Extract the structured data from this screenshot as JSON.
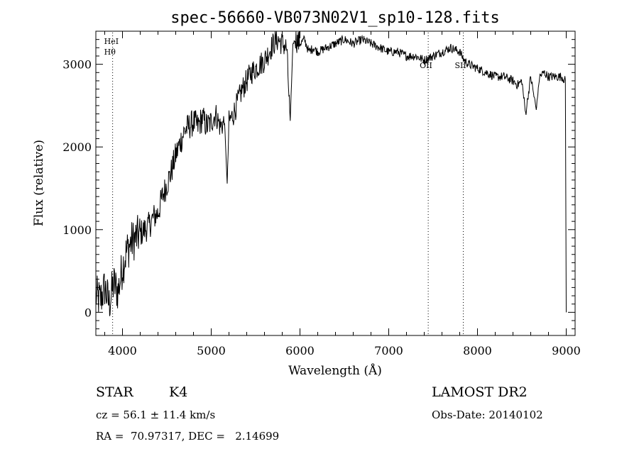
{
  "chart_data": {
    "type": "line",
    "title": "spec-56660-VB073N02V1_sp10-128.fits",
    "xlabel": "Wavelength (Å)",
    "ylabel": "Flux (relative)",
    "xlim": [
      3700,
      9100
    ],
    "ylim": [
      -280,
      3400
    ],
    "xticks": [
      4000,
      5000,
      6000,
      7000,
      8000,
      9000
    ],
    "yticks": [
      0,
      1000,
      2000,
      3000
    ],
    "grid": false,
    "series": [
      {
        "name": "spectrum",
        "x": [
          3700,
          3750,
          3800,
          3850,
          3900,
          3950,
          4000,
          4050,
          4100,
          4150,
          4200,
          4250,
          4300,
          4350,
          4400,
          4450,
          4500,
          4550,
          4600,
          4650,
          4700,
          4750,
          4800,
          4850,
          4900,
          4950,
          5000,
          5050,
          5100,
          5150,
          5180,
          5200,
          5250,
          5300,
          5350,
          5400,
          5450,
          5500,
          5550,
          5600,
          5650,
          5700,
          5750,
          5800,
          5850,
          5890,
          5920,
          5950,
          6000,
          6050,
          6100,
          6150,
          6200,
          6300,
          6400,
          6500,
          6600,
          6700,
          6800,
          6900,
          7000,
          7100,
          7200,
          7300,
          7400,
          7500,
          7600,
          7700,
          7800,
          7850,
          7900,
          8000,
          8100,
          8200,
          8300,
          8400,
          8450,
          8500,
          8542,
          8600,
          8662,
          8700,
          8750,
          8800,
          8850,
          8900,
          8950,
          8990,
          9000
        ],
        "values": [
          200,
          150,
          300,
          100,
          350,
          250,
          550,
          750,
          850,
          900,
          950,
          1000,
          1050,
          1150,
          1200,
          1400,
          1550,
          1700,
          1900,
          2050,
          2200,
          2250,
          2300,
          2250,
          2350,
          2250,
          2300,
          2400,
          2250,
          2300,
          1550,
          2300,
          2400,
          2550,
          2700,
          2800,
          2900,
          2950,
          3000,
          3050,
          3150,
          3250,
          3300,
          3250,
          3200,
          2300,
          3250,
          3300,
          3250,
          3300,
          3150,
          3200,
          3150,
          3200,
          3250,
          3300,
          3250,
          3300,
          3250,
          3200,
          3150,
          3150,
          3100,
          3100,
          3050,
          3100,
          3150,
          3200,
          3150,
          3050,
          3000,
          2950,
          2900,
          2850,
          2850,
          2800,
          2750,
          2800,
          2400,
          2850,
          2450,
          2850,
          2900,
          2850,
          2850,
          2850,
          2850,
          2800,
          0
        ]
      }
    ],
    "line_markers": [
      {
        "label": "HeI",
        "x": 3889
      },
      {
        "label": "Hθ",
        "x": 3889
      },
      {
        "label": "OII",
        "x": 7445
      },
      {
        "label": "SII",
        "x": 7840
      }
    ]
  },
  "footer": {
    "object_class": "STAR",
    "subclass": "K4",
    "survey": "LAMOST DR2",
    "cz": "cz = 56.1 ± 11.4 km/s",
    "obs_date": "Obs-Date: 20140102",
    "coords": "RA =  70.97317, DEC =   2.14699"
  }
}
